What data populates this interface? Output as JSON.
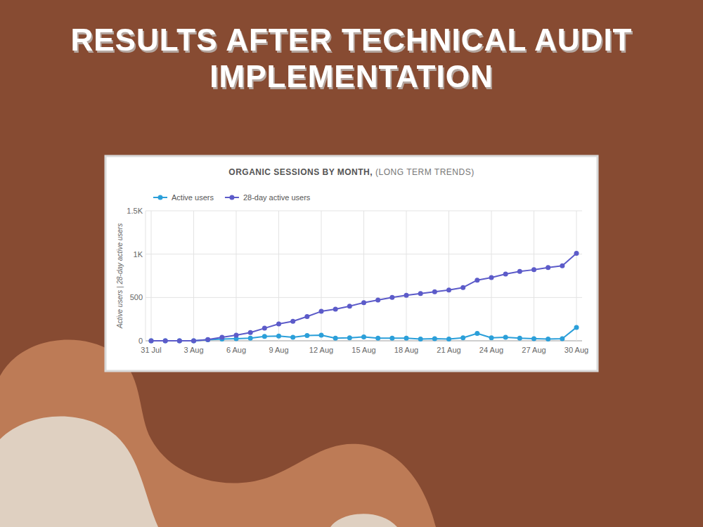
{
  "page": {
    "heading": "RESULTS AFTER TECHNICAL AUDIT IMPLEMENTATION"
  },
  "chart_data": {
    "type": "line",
    "title": "ORGANIC SESSIONS BY MONTH,",
    "subtitle": "(LONG TERM TRENDS)",
    "y_label": "Active users | 28-day active users",
    "categories": [
      "31 Jul",
      null,
      null,
      "3 Aug",
      null,
      null,
      "6 Aug",
      null,
      null,
      "9 Aug",
      null,
      null,
      "12 Aug",
      null,
      null,
      "15 Aug",
      null,
      null,
      "18 Aug",
      null,
      null,
      "21 Aug",
      null,
      null,
      "24 Aug",
      null,
      null,
      "27 Aug",
      null,
      null,
      "30 Aug"
    ],
    "series": [
      {
        "name": "Active users",
        "color": "#2b9fd9",
        "marker": "circle",
        "line_style": "solid",
        "values": [
          0,
          0,
          0,
          0,
          12,
          20,
          25,
          30,
          50,
          55,
          40,
          60,
          65,
          30,
          35,
          45,
          30,
          30,
          30,
          20,
          25,
          20,
          35,
          85,
          35,
          40,
          30,
          25,
          20,
          25,
          155
        ]
      },
      {
        "name": "28-day active users",
        "color": "#5c5bc9",
        "marker": "circle",
        "line_style": "solid",
        "values": [
          0,
          0,
          0,
          0,
          14,
          40,
          65,
          95,
          145,
          195,
          225,
          280,
          340,
          365,
          400,
          440,
          470,
          500,
          525,
          545,
          565,
          585,
          615,
          700,
          730,
          770,
          800,
          820,
          845,
          865,
          1010
        ]
      }
    ],
    "ylim": [
      0,
      1500
    ],
    "yticks": [
      0,
      500,
      {
        "value": 1000,
        "label": "1K"
      },
      {
        "value": 1500,
        "label": "1.5K"
      }
    ],
    "grid": true,
    "legend": "top"
  }
}
